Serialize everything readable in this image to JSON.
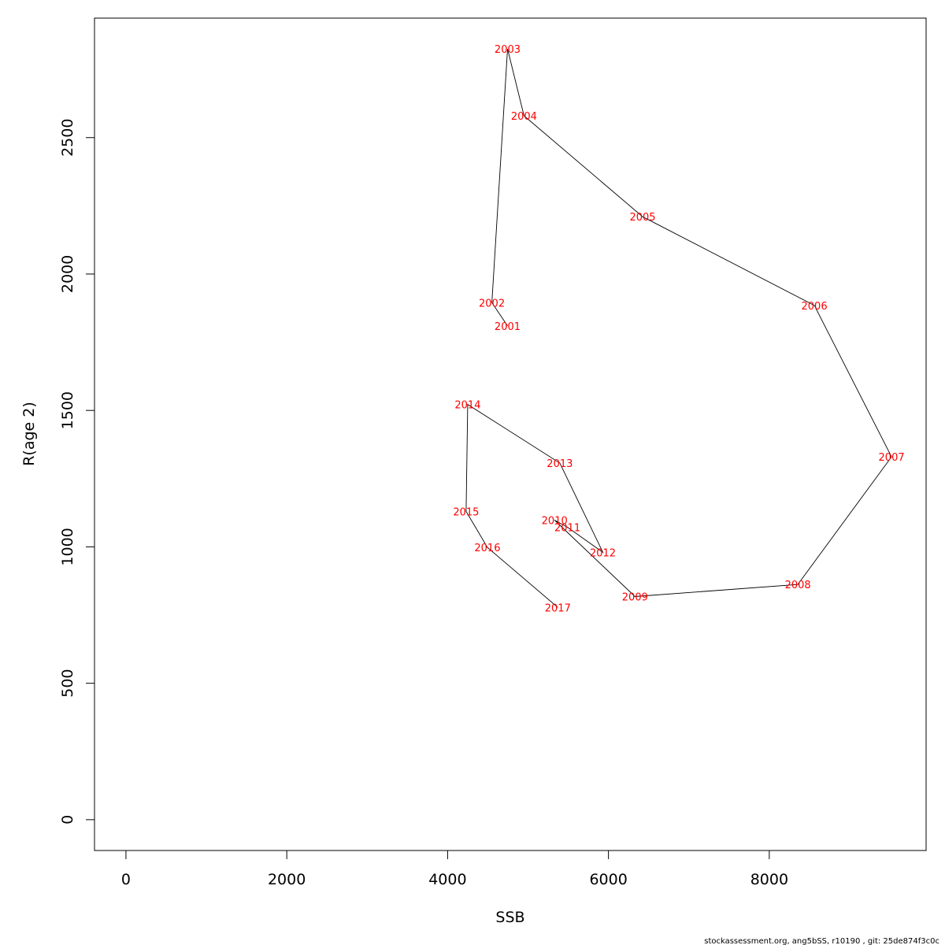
{
  "chart_data": {
    "type": "line",
    "title": "",
    "xlabel": "SSB",
    "ylabel": "R(age 2)",
    "xlim": [
      -391,
      9950
    ],
    "ylim": [
      -113,
      2938
    ],
    "xticks": [
      0,
      2000,
      4000,
      6000,
      8000
    ],
    "yticks": [
      0,
      500,
      1000,
      1500,
      2000,
      2500
    ],
    "grid": false,
    "line_color": "#000000",
    "label_color": "#ff0000",
    "points": [
      {
        "label": "2001",
        "x": 4745,
        "y": 1810
      },
      {
        "label": "2002",
        "x": 4550,
        "y": 1895
      },
      {
        "label": "2003",
        "x": 4745,
        "y": 2825
      },
      {
        "label": "2004",
        "x": 4950,
        "y": 2580
      },
      {
        "label": "2005",
        "x": 6425,
        "y": 2210
      },
      {
        "label": "2006",
        "x": 8560,
        "y": 1885
      },
      {
        "label": "2007",
        "x": 9520,
        "y": 1330
      },
      {
        "label": "2008",
        "x": 8355,
        "y": 862
      },
      {
        "label": "2009",
        "x": 6330,
        "y": 818
      },
      {
        "label": "2010",
        "x": 5330,
        "y": 1098
      },
      {
        "label": "2011",
        "x": 5490,
        "y": 1072
      },
      {
        "label": "2012",
        "x": 5930,
        "y": 980
      },
      {
        "label": "2013",
        "x": 5395,
        "y": 1307
      },
      {
        "label": "2014",
        "x": 4250,
        "y": 1522
      },
      {
        "label": "2015",
        "x": 4230,
        "y": 1130
      },
      {
        "label": "2016",
        "x": 4495,
        "y": 998
      },
      {
        "label": "2017",
        "x": 5370,
        "y": 778
      }
    ]
  },
  "footer_text": "stockassessment.org, ang5bSS, r10190 , git: 25de874f3c0c"
}
